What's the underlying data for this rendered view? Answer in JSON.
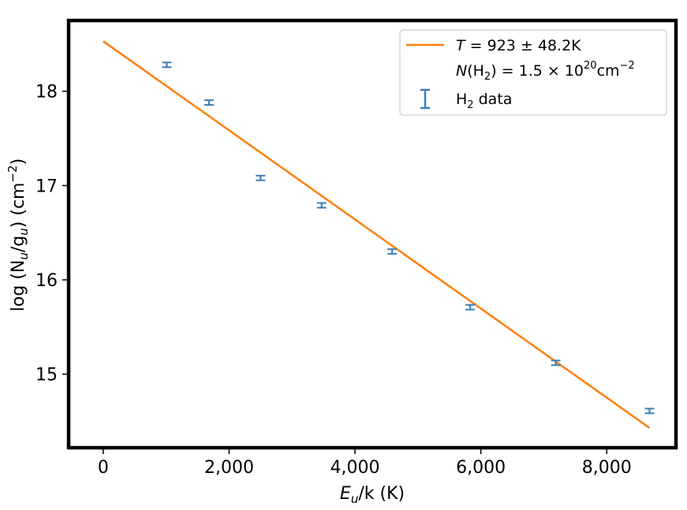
{
  "chart_data": {
    "type": "scatter",
    "xlabel": {
      "base": "E",
      "sub": "u",
      "rest": "/k (K)"
    },
    "ylabel": {
      "pre": "log (N",
      "sub1": "u",
      "mid": "/g",
      "sub2": "u",
      "post": ") (cm",
      "sup": "−2",
      "end": ")"
    },
    "xlim": [
      -550,
      9100
    ],
    "ylim": [
      14.22,
      18.75
    ],
    "x_ticks": [
      0,
      2000,
      4000,
      6000,
      8000
    ],
    "x_tick_labels": [
      "0",
      "2,000",
      "4,000",
      "6,000",
      "8,000"
    ],
    "y_ticks": [
      15,
      16,
      17,
      18
    ],
    "y_tick_labels": [
      "15",
      "16",
      "17",
      "18"
    ],
    "grid": false,
    "legend_position": "top-right",
    "series": [
      {
        "name": "H₂ data",
        "color": "#3b7fb8",
        "marker": "errorbar",
        "points": [
          {
            "x": 1010,
            "y": 18.28,
            "err": 0.025
          },
          {
            "x": 1680,
            "y": 17.88,
            "err": 0.025
          },
          {
            "x": 2500,
            "y": 17.08,
            "err": 0.025
          },
          {
            "x": 3470,
            "y": 16.79,
            "err": 0.025
          },
          {
            "x": 4590,
            "y": 16.3,
            "err": 0.025
          },
          {
            "x": 5830,
            "y": 15.71,
            "err": 0.025
          },
          {
            "x": 7190,
            "y": 15.12,
            "err": 0.025
          },
          {
            "x": 8680,
            "y": 14.61,
            "err": 0.025
          }
        ]
      }
    ],
    "fit_line": {
      "color": "#ff7f0e",
      "x": [
        0,
        8680
      ],
      "y": [
        18.53,
        14.43
      ]
    },
    "legend": {
      "line1": {
        "var": "T",
        "text": " = 923 ± 48.2K"
      },
      "line2": {
        "var": "N",
        "a": "(H",
        "sub": "2",
        "b": ") = 1.5 × 10",
        "sup": "20",
        "c": "cm",
        "sup2": "−2"
      },
      "line3": {
        "text": "H",
        "sub": "2",
        "rest": " data"
      }
    }
  }
}
